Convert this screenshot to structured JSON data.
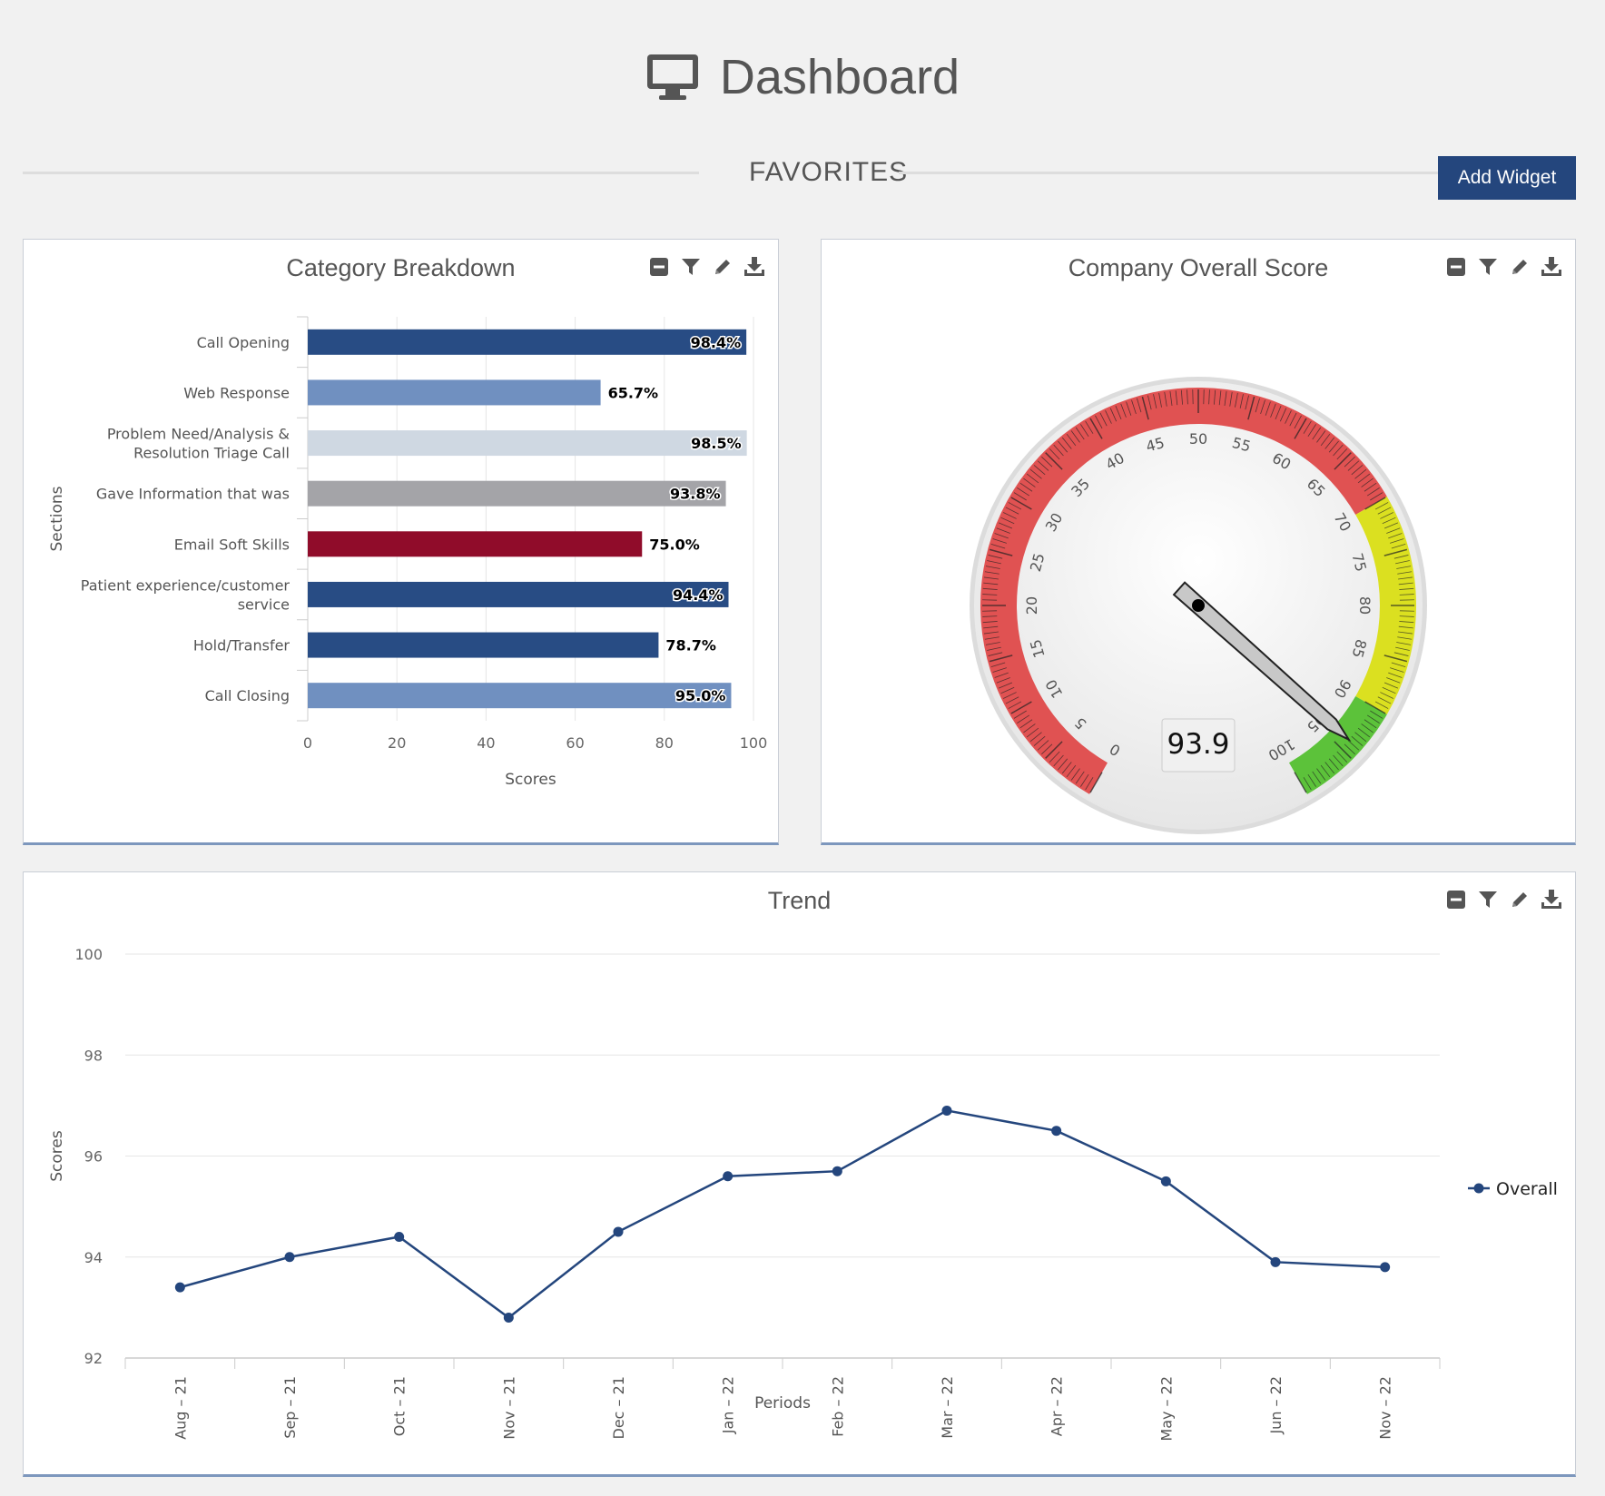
{
  "header": {
    "title": "Dashboard",
    "icon": "monitor-icon"
  },
  "favorites": {
    "label": "FAVORITES",
    "add_widget_label": "Add Widget"
  },
  "widgets": {
    "category": {
      "title": "Category Breakdown"
    },
    "company": {
      "title": "Company Overall Score"
    },
    "trend": {
      "title": "Trend"
    }
  },
  "toolbar_icons": [
    "minimize-icon",
    "filter-icon",
    "edit-icon",
    "download-icon"
  ],
  "colors": {
    "accent": "#24467d",
    "dark_blue": "#284c84",
    "light_blue": "#7090c0",
    "pale_blue": "#cfd8e2",
    "gray": "#a4a4a8",
    "crimson": "#900c2a",
    "red": "#e05252",
    "yellow": "#dbe020",
    "green": "#5cc23a"
  },
  "chart_data": [
    {
      "type": "bar",
      "title": "Category Breakdown",
      "orientation": "horizontal",
      "ylabel": "Sections",
      "xlabel": "Scores",
      "xlim": [
        0,
        100
      ],
      "xticks": [
        0,
        20,
        40,
        60,
        80,
        100
      ],
      "categories": [
        [
          "Call Opening"
        ],
        [
          "Web Response"
        ],
        [
          "Problem Need/Analysis &",
          "Resolution Triage Call"
        ],
        [
          "Gave Information that was"
        ],
        [
          "Email Soft Skills"
        ],
        [
          "Patient experience/customer",
          "service"
        ],
        [
          "Hold/Transfer"
        ],
        [
          "Call Closing"
        ]
      ],
      "values": [
        98.4,
        65.7,
        98.5,
        93.8,
        75.0,
        94.4,
        78.7,
        95.0
      ],
      "labels": [
        "98.4%",
        "65.7%",
        "98.5%",
        "93.8%",
        "75.0%",
        "94.4%",
        "78.7%",
        "95.0%"
      ],
      "bar_colors": [
        "#284c84",
        "#7090c0",
        "#cfd8e2",
        "#a4a4a8",
        "#900c2a",
        "#284c84",
        "#284c84",
        "#7090c0"
      ]
    },
    {
      "type": "gauge",
      "title": "Company Overall Score",
      "min": 0,
      "max": 100,
      "value": 93.9,
      "value_label": "93.9",
      "tick_labels": [
        0,
        5,
        10,
        15,
        20,
        25,
        30,
        35,
        40,
        45,
        50,
        55,
        60,
        65,
        70,
        75,
        80,
        85,
        90,
        95,
        100
      ],
      "bands": [
        {
          "from": 0,
          "to": 70,
          "color": "#e05252"
        },
        {
          "from": 70,
          "to": 90,
          "color": "#dbe020"
        },
        {
          "from": 90,
          "to": 100,
          "color": "#5cc23a"
        }
      ]
    },
    {
      "type": "line",
      "title": "Trend",
      "xlabel": "Periods",
      "ylabel": "Scores",
      "ylim": [
        92,
        100
      ],
      "yticks": [
        92,
        94,
        96,
        98,
        100
      ],
      "categories": [
        "Aug – 21",
        "Sep – 21",
        "Oct – 21",
        "Nov – 21",
        "Dec – 21",
        "Jan – 22",
        "Feb – 22",
        "Mar – 22",
        "Apr – 22",
        "May – 22",
        "Jun – 22",
        "Nov – 22"
      ],
      "series": [
        {
          "name": "Overall",
          "color": "#24467d",
          "values": [
            93.4,
            94.0,
            94.4,
            92.8,
            94.5,
            95.6,
            95.7,
            96.9,
            96.5,
            95.5,
            93.9,
            93.8
          ]
        }
      ],
      "legend": "right"
    }
  ]
}
